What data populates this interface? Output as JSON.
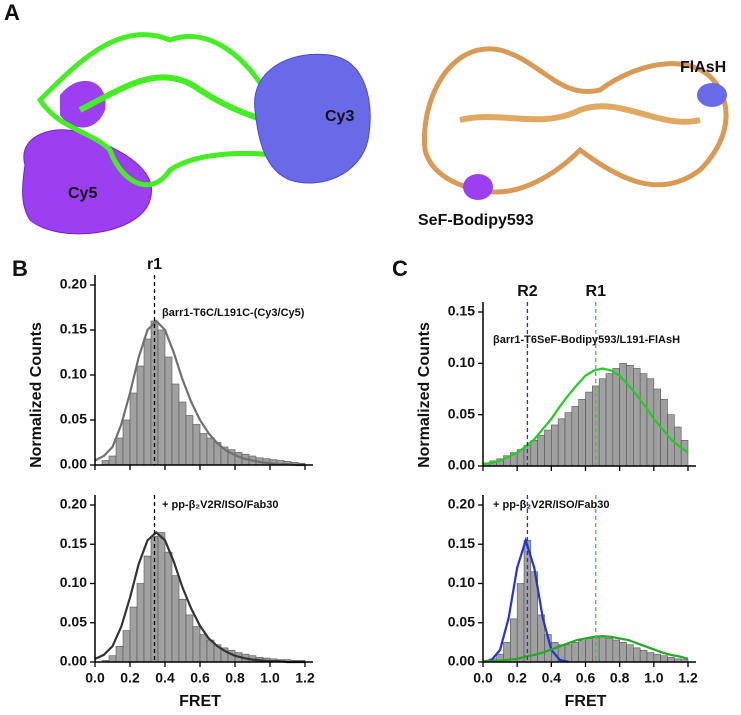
{
  "panel_labels": [
    "A",
    "B",
    "C"
  ],
  "structure_labels": [
    "Cy5",
    "Cy3",
    "FlAsH",
    "SeF-Bodipy593"
  ],
  "chart_data": [
    {
      "type": "histogram",
      "annotation": "βarr1-T6C/L191C-(Cy3/Cy5)",
      "ylabel": "Normalized Counts",
      "bins": [
        0,
        0.04,
        0.08,
        0.12,
        0.16,
        0.2,
        0.24,
        0.28,
        0.32,
        0.36,
        0.4,
        0.44,
        0.48,
        0.52,
        0.56,
        0.6,
        0.64,
        0.68,
        0.72,
        0.76,
        0.8,
        0.84,
        0.88,
        0.92,
        0.96,
        1,
        1.04,
        1.08,
        1.12,
        1.16,
        1.2
      ],
      "values": [
        0,
        0.005,
        0.01,
        0.03,
        0.05,
        0.08,
        0.11,
        0.14,
        0.16,
        0.15,
        0.12,
        0.09,
        0.07,
        0.055,
        0.045,
        0.035,
        0.03,
        0.025,
        0.02,
        0.017,
        0.014,
        0.012,
        0.01,
        0.008,
        0.007,
        0.006,
        0.005,
        0.004,
        0.003,
        0.002
      ],
      "color": "#a0a0a0",
      "fits": [
        {
          "color": "#707070",
          "x": [
            0,
            0.05,
            0.1,
            0.15,
            0.2,
            0.25,
            0.3,
            0.35,
            0.4,
            0.45,
            0.5,
            0.55,
            0.6,
            0.65,
            0.7,
            0.75,
            0.8,
            0.85,
            0.9,
            0.95,
            1,
            1.05,
            1.1,
            1.15,
            1.2
          ],
          "values": [
            0.005,
            0.01,
            0.02,
            0.045,
            0.08,
            0.12,
            0.15,
            0.16,
            0.15,
            0.125,
            0.095,
            0.07,
            0.05,
            0.035,
            0.024,
            0.016,
            0.011,
            0.007,
            0.005,
            0.003,
            0.002,
            0.001,
            0.001,
            0,
            0
          ]
        }
      ],
      "markers": [
        {
          "x": 0.34,
          "label": "r1",
          "color": "#000000"
        }
      ],
      "xlim": [
        0,
        1.2
      ],
      "xticks": [
        0,
        0.2,
        0.4,
        0.6,
        0.8,
        1,
        1.2
      ],
      "xtick_labels": false,
      "ylim": [
        0,
        0.2
      ],
      "yticks": [
        {
          "value": 0,
          "label": "0.00"
        },
        {
          "value": 0.05,
          "label": "0.05"
        },
        {
          "value": 0.1,
          "label": "0.10"
        },
        {
          "value": 0.15,
          "label": "0.15"
        },
        {
          "value": 0.2,
          "label": "0.20"
        }
      ]
    },
    {
      "type": "histogram",
      "annotation": "+ pp-β₂V2R/ISO/Fab30",
      "xlabel": "FRET",
      "bins": [
        0,
        0.04,
        0.08,
        0.12,
        0.16,
        0.2,
        0.24,
        0.28,
        0.32,
        0.36,
        0.4,
        0.44,
        0.48,
        0.52,
        0.56,
        0.6,
        0.64,
        0.68,
        0.72,
        0.76,
        0.8,
        0.84,
        0.88,
        0.92,
        0.96,
        1,
        1.04,
        1.08,
        1.12,
        1.16,
        1.2
      ],
      "values": [
        0,
        0.002,
        0.008,
        0.02,
        0.04,
        0.07,
        0.1,
        0.135,
        0.16,
        0.165,
        0.14,
        0.11,
        0.08,
        0.06,
        0.045,
        0.035,
        0.028,
        0.022,
        0.018,
        0.015,
        0.012,
        0.01,
        0.008,
        0.006,
        0.005,
        0.004,
        0.003,
        0.003,
        0.002,
        0.002
      ],
      "color": "#a0a0a0",
      "fits": [
        {
          "color": "#333333",
          "x": [
            0,
            0.05,
            0.1,
            0.15,
            0.2,
            0.25,
            0.3,
            0.35,
            0.4,
            0.45,
            0.5,
            0.55,
            0.6,
            0.65,
            0.7,
            0.75,
            0.8,
            0.85,
            0.9,
            0.95,
            1,
            1.05,
            1.1,
            1.15,
            1.2
          ],
          "values": [
            0.004,
            0.009,
            0.02,
            0.045,
            0.082,
            0.125,
            0.155,
            0.165,
            0.155,
            0.128,
            0.095,
            0.068,
            0.046,
            0.03,
            0.02,
            0.013,
            0.008,
            0.005,
            0.003,
            0.002,
            0.001,
            0.001,
            0,
            0,
            0
          ]
        }
      ],
      "markers": [
        {
          "x": 0.34,
          "color": "#000000"
        }
      ],
      "xlim": [
        0,
        1.2
      ],
      "xticks": [
        {
          "value": 0,
          "label": "0.0"
        },
        {
          "value": 0.2,
          "label": "0.2"
        },
        {
          "value": 0.4,
          "label": "0.4"
        },
        {
          "value": 0.6,
          "label": "0.6"
        },
        {
          "value": 0.8,
          "label": "0.8"
        },
        {
          "value": 1,
          "label": "1.0"
        },
        {
          "value": 1.2,
          "label": "1.2"
        }
      ],
      "xtick_labels": true,
      "ylim": [
        0,
        0.2
      ],
      "yticks": [
        {
          "value": 0,
          "label": "0.00"
        },
        {
          "value": 0.05,
          "label": "0.05"
        },
        {
          "value": 0.1,
          "label": "0.10"
        },
        {
          "value": 0.15,
          "label": "0.15"
        },
        {
          "value": 0.2,
          "label": "0.20"
        }
      ]
    },
    {
      "type": "histogram",
      "annotation": "βarr1-T6SeF-Bodipy593/L191-FlAsH",
      "ylabel": "Normalized Counts",
      "bins": [
        0,
        0.04,
        0.08,
        0.12,
        0.16,
        0.2,
        0.24,
        0.28,
        0.32,
        0.36,
        0.4,
        0.44,
        0.48,
        0.52,
        0.56,
        0.6,
        0.64,
        0.68,
        0.72,
        0.76,
        0.8,
        0.84,
        0.88,
        0.92,
        0.96,
        1,
        1.04,
        1.08,
        1.12,
        1.16,
        1.2
      ],
      "values": [
        0.003,
        0.005,
        0.007,
        0.01,
        0.013,
        0.016,
        0.02,
        0.025,
        0.03,
        0.035,
        0.04,
        0.046,
        0.052,
        0.058,
        0.065,
        0.072,
        0.078,
        0.085,
        0.09,
        0.095,
        0.1,
        0.098,
        0.095,
        0.09,
        0.085,
        0.075,
        0.065,
        0.05,
        0.038,
        0.025
      ],
      "color": "#a0a0a0",
      "fits": [
        {
          "color": "#22cc22",
          "x": [
            0,
            0.05,
            0.1,
            0.15,
            0.2,
            0.25,
            0.3,
            0.35,
            0.4,
            0.45,
            0.5,
            0.55,
            0.6,
            0.65,
            0.7,
            0.75,
            0.8,
            0.85,
            0.9,
            0.95,
            1,
            1.05,
            1.1,
            1.15,
            1.2
          ],
          "values": [
            0.002,
            0.003,
            0.005,
            0.009,
            0.013,
            0.019,
            0.026,
            0.036,
            0.046,
            0.058,
            0.069,
            0.079,
            0.088,
            0.093,
            0.095,
            0.093,
            0.088,
            0.079,
            0.069,
            0.058,
            0.046,
            0.036,
            0.026,
            0.019,
            0.013
          ]
        }
      ],
      "markers": [
        {
          "x": 0.26,
          "label": "R2",
          "color": "#2a2ad0"
        },
        {
          "x": 0.66,
          "label": "R1",
          "color": "#33cc33"
        }
      ],
      "xlim": [
        0,
        1.2
      ],
      "xticks": [
        0,
        0.2,
        0.4,
        0.6,
        0.8,
        1,
        1.2
      ],
      "xtick_labels": false,
      "ylim": [
        0,
        0.15
      ],
      "yticks": [
        {
          "value": 0,
          "label": "0.00"
        },
        {
          "value": 0.05,
          "label": "0.05"
        },
        {
          "value": 0.1,
          "label": "0.10"
        },
        {
          "value": 0.15,
          "label": "0.15"
        }
      ]
    },
    {
      "type": "histogram",
      "annotation": "+ pp-β₂V2R/ISO/Fab30",
      "xlabel": "FRET",
      "bins": [
        0,
        0.04,
        0.08,
        0.12,
        0.16,
        0.2,
        0.24,
        0.28,
        0.32,
        0.36,
        0.4,
        0.44,
        0.48,
        0.52,
        0.56,
        0.6,
        0.64,
        0.68,
        0.72,
        0.76,
        0.8,
        0.84,
        0.88,
        0.92,
        0.96,
        1,
        1.04,
        1.08,
        1.12,
        1.16,
        1.2
      ],
      "values": [
        0.002,
        0.004,
        0.01,
        0.025,
        0.055,
        0.1,
        0.155,
        0.115,
        0.06,
        0.035,
        0.025,
        0.022,
        0.022,
        0.025,
        0.027,
        0.03,
        0.032,
        0.033,
        0.03,
        0.028,
        0.025,
        0.022,
        0.018,
        0.015,
        0.012,
        0.01,
        0.008,
        0.006,
        0.004,
        0.003
      ],
      "color": "#a0a0a0",
      "fits": [
        {
          "color": "#2233dd",
          "x": [
            0,
            0.05,
            0.1,
            0.15,
            0.2,
            0.25,
            0.3,
            0.35,
            0.4,
            0.45,
            0.5
          ],
          "values": [
            0.0003,
            0.0026,
            0.0155,
            0.056,
            0.12,
            0.155,
            0.12,
            0.056,
            0.0155,
            0.0026,
            0.0003
          ]
        },
        {
          "color": "#22aa22",
          "x": [
            0,
            0.05,
            0.1,
            0.15,
            0.2,
            0.25,
            0.3,
            0.35,
            0.4,
            0.45,
            0.5,
            0.55,
            0.6,
            0.65,
            0.7,
            0.75,
            0.8,
            0.85,
            0.9,
            0.95,
            1,
            1.05,
            1.1,
            1.15,
            1.2
          ],
          "values": [
            0.001,
            0.001,
            0.002,
            0.003,
            0.004,
            0.007,
            0.009,
            0.012,
            0.016,
            0.02,
            0.024,
            0.028,
            0.03,
            0.032,
            0.033,
            0.032,
            0.03,
            0.028,
            0.024,
            0.02,
            0.016,
            0.012,
            0.009,
            0.007,
            0.004
          ]
        }
      ],
      "markers": [
        {
          "x": 0.26,
          "color": "#2a2ad0"
        },
        {
          "x": 0.66,
          "color": "#33cc33"
        }
      ],
      "xlim": [
        0,
        1.2
      ],
      "xticks": [
        {
          "value": 0,
          "label": "0.0"
        },
        {
          "value": 0.2,
          "label": "0.2"
        },
        {
          "value": 0.4,
          "label": "0.4"
        },
        {
          "value": 0.6,
          "label": "0.6"
        },
        {
          "value": 0.8,
          "label": "0.8"
        },
        {
          "value": 1,
          "label": "1.0"
        },
        {
          "value": 1.2,
          "label": "1.2"
        }
      ],
      "xtick_labels": true,
      "ylim": [
        0,
        0.2
      ],
      "yticks": [
        {
          "value": 0,
          "label": "0.00"
        },
        {
          "value": 0.05,
          "label": "0.05"
        },
        {
          "value": 0.1,
          "label": "0.10"
        },
        {
          "value": 0.15,
          "label": "0.15"
        },
        {
          "value": 0.2,
          "label": "0.20"
        }
      ]
    }
  ]
}
